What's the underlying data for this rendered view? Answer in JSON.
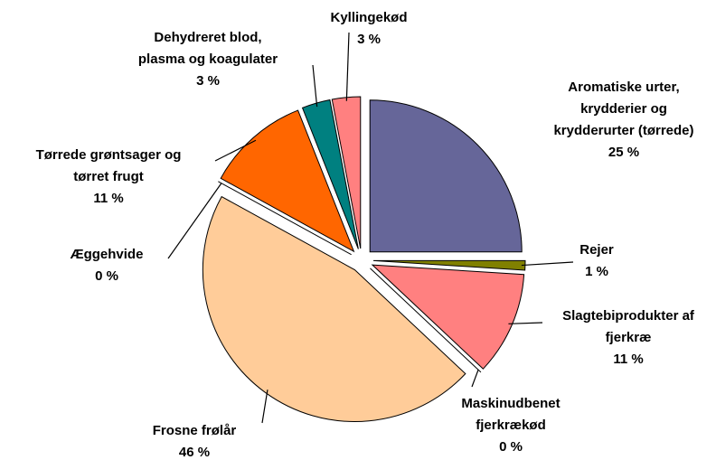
{
  "chart_data": {
    "type": "pie",
    "categories": [
      "Aromatiske urter,\nkrydderier og\nkrydderurter (tørrede)",
      "Rejer",
      "Slagtebiprodukter af\nfjerkræ",
      "Maskinudbenet\nfjerkrækød",
      "Frosne frølår",
      "Æggehvide",
      "Tørrede grøntsager og\ntørret frugt",
      "Dehydreret blod,\nplasma og koagulater",
      "Kyllingekød"
    ],
    "values": [
      25,
      1,
      11,
      0,
      46,
      0,
      11,
      3,
      3
    ],
    "value_labels": [
      "25 %",
      "1 %",
      "11 %",
      "0 %",
      "46 %",
      "0 %",
      "11 %",
      "3 %",
      "3 %"
    ],
    "colors": [
      "#666699",
      "#808000",
      "#ff8080",
      "#ccffff",
      "#ffcc99",
      "#ffffcc",
      "#ff6600",
      "#008080",
      "#ff8080"
    ]
  }
}
